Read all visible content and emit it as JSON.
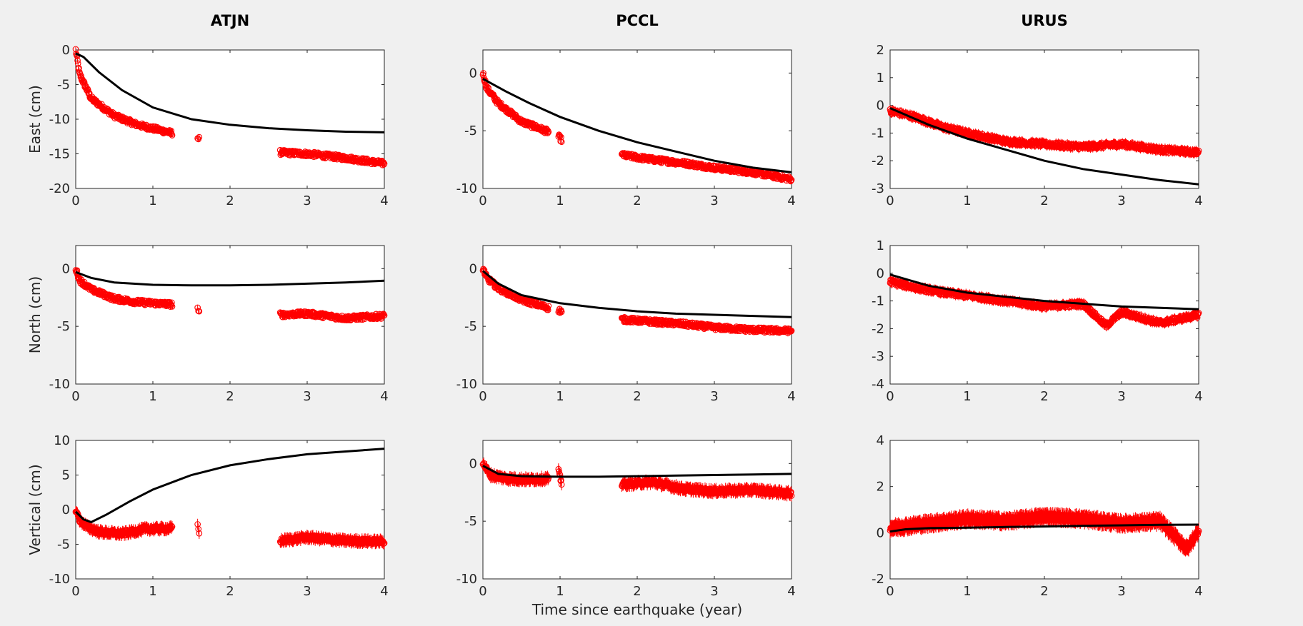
{
  "figure": {
    "colors": {
      "observed": "#ff0000",
      "model": "#000000",
      "background": "#f0f0f0"
    }
  },
  "chart_data": [
    {
      "type": "scatter",
      "station": "ATJN",
      "component": "East",
      "title": "ATJN",
      "xlabel": "",
      "ylabel": "East (cm)",
      "xlim": [
        0,
        4
      ],
      "ylim": [
        -20,
        0
      ],
      "xticks": [
        "0",
        "1",
        "2",
        "3",
        "4"
      ],
      "yticks": [
        "0",
        "-5",
        "-10",
        "-15",
        "-20"
      ],
      "observed_segments": [
        {
          "x": [
            0,
            0.05,
            0.2,
            0.5,
            0.8,
            1.25
          ],
          "y": [
            0,
            -3.5,
            -7,
            -9.5,
            -10.8,
            -12.0
          ]
        },
        {
          "x": [
            1.58,
            1.6
          ],
          "y": [
            -12.7,
            -12.9
          ]
        },
        {
          "x": [
            2.65,
            3.0,
            3.5,
            4.0
          ],
          "y": [
            -14.8,
            -15.0,
            -15.6,
            -16.4
          ]
        }
      ],
      "model": {
        "x": [
          0,
          0.1,
          0.3,
          0.6,
          1.0,
          1.5,
          2.0,
          2.5,
          3.0,
          3.5,
          4.0
        ],
        "y": [
          -0.5,
          -1.0,
          -3.2,
          -5.8,
          -8.3,
          -10.0,
          -10.8,
          -11.3,
          -11.6,
          -11.8,
          -11.9
        ]
      },
      "error_bar": 0.3
    },
    {
      "type": "scatter",
      "station": "PCCL",
      "component": "East",
      "title": "PCCL",
      "xlabel": "",
      "ylabel": "",
      "xlim": [
        0,
        4
      ],
      "ylim": [
        -10,
        2
      ],
      "xticks": [
        "0",
        "1",
        "2",
        "3",
        "4"
      ],
      "yticks": [
        "0",
        "-5",
        "-10"
      ],
      "observed_segments": [
        {
          "x": [
            0,
            0.05,
            0.2,
            0.5,
            0.85
          ],
          "y": [
            0,
            -1.3,
            -2.6,
            -4.2,
            -5.1
          ]
        },
        {
          "x": [
            0.98,
            1.02
          ],
          "y": [
            -5.5,
            -5.8
          ]
        },
        {
          "x": [
            1.8,
            2.2,
            2.6,
            3.0,
            3.5,
            4.0
          ],
          "y": [
            -7.1,
            -7.5,
            -7.8,
            -8.2,
            -8.6,
            -9.2
          ]
        }
      ],
      "model": {
        "x": [
          0,
          0.3,
          0.6,
          1.0,
          1.5,
          2.0,
          2.5,
          3.0,
          3.5,
          4.0
        ],
        "y": [
          -0.5,
          -1.6,
          -2.6,
          -3.8,
          -5.0,
          -6.0,
          -6.8,
          -7.6,
          -8.2,
          -8.6
        ]
      },
      "error_bar": 0.2
    },
    {
      "type": "scatter",
      "station": "URUS",
      "component": "East",
      "title": "URUS",
      "xlabel": "",
      "ylabel": "",
      "xlim": [
        0,
        4
      ],
      "ylim": [
        -3,
        2
      ],
      "xticks": [
        "0",
        "1",
        "2",
        "3",
        "4"
      ],
      "yticks": [
        "2",
        "1",
        "0",
        "-1",
        "-2",
        "-3"
      ],
      "observed_segments": [
        {
          "x": [
            0,
            0.3,
            0.7,
            1.0,
            1.5,
            2.0,
            2.5,
            3.0,
            3.5,
            4.0
          ],
          "y": [
            -0.2,
            -0.4,
            -0.8,
            -1.0,
            -1.3,
            -1.4,
            -1.5,
            -1.4,
            -1.6,
            -1.7
          ]
        }
      ],
      "model": {
        "x": [
          0,
          0.5,
          1.0,
          1.5,
          2.0,
          2.5,
          3.0,
          3.5,
          4.0
        ],
        "y": [
          -0.1,
          -0.7,
          -1.2,
          -1.6,
          -2.0,
          -2.3,
          -2.5,
          -2.7,
          -2.85
        ]
      },
      "error_bar": 0.15
    },
    {
      "type": "scatter",
      "station": "ATJN",
      "component": "North",
      "title": "",
      "xlabel": "",
      "ylabel": "North (cm)",
      "xlim": [
        0,
        4
      ],
      "ylim": [
        -10,
        2
      ],
      "xticks": [
        "0",
        "1",
        "2",
        "3",
        "4"
      ],
      "yticks": [
        "0",
        "-5",
        "-10"
      ],
      "observed_segments": [
        {
          "x": [
            0,
            0.05,
            0.2,
            0.5,
            0.8,
            1.25
          ],
          "y": [
            0,
            -1.0,
            -1.8,
            -2.6,
            -2.9,
            -3.1
          ]
        },
        {
          "x": [
            1.58,
            1.6
          ],
          "y": [
            -3.5,
            -3.7
          ]
        },
        {
          "x": [
            2.65,
            3.0,
            3.5,
            4.0
          ],
          "y": [
            -4.0,
            -3.9,
            -4.3,
            -4.1
          ]
        }
      ],
      "model": {
        "x": [
          0,
          0.2,
          0.5,
          1.0,
          1.5,
          2.0,
          2.5,
          3.0,
          3.5,
          4.0
        ],
        "y": [
          -0.3,
          -0.8,
          -1.2,
          -1.4,
          -1.45,
          -1.45,
          -1.4,
          -1.3,
          -1.2,
          -1.05
        ]
      },
      "error_bar": 0.2
    },
    {
      "type": "scatter",
      "station": "PCCL",
      "component": "North",
      "title": "",
      "xlabel": "",
      "ylabel": "",
      "xlim": [
        0,
        4
      ],
      "ylim": [
        -10,
        2
      ],
      "xticks": [
        "0",
        "1",
        "2",
        "3",
        "4"
      ],
      "yticks": [
        "0",
        "-5",
        "-10"
      ],
      "observed_segments": [
        {
          "x": [
            0,
            0.05,
            0.2,
            0.5,
            0.85
          ],
          "y": [
            0,
            -0.8,
            -1.7,
            -2.7,
            -3.4
          ]
        },
        {
          "x": [
            0.98,
            1.02
          ],
          "y": [
            -3.6,
            -3.7
          ]
        },
        {
          "x": [
            1.8,
            2.2,
            2.6,
            3.0,
            3.5,
            4.0
          ],
          "y": [
            -4.4,
            -4.6,
            -4.8,
            -5.1,
            -5.3,
            -5.4
          ]
        }
      ],
      "model": {
        "x": [
          0,
          0.2,
          0.5,
          1.0,
          1.5,
          2.0,
          2.5,
          3.0,
          3.5,
          4.0
        ],
        "y": [
          -0.2,
          -1.3,
          -2.3,
          -3.0,
          -3.4,
          -3.7,
          -3.9,
          -4.0,
          -4.1,
          -4.2
        ]
      },
      "error_bar": 0.2
    },
    {
      "type": "scatter",
      "station": "URUS",
      "component": "North",
      "title": "",
      "xlabel": "",
      "ylabel": "",
      "xlim": [
        0,
        4
      ],
      "ylim": [
        -4,
        1
      ],
      "xticks": [
        "0",
        "1",
        "2",
        "3",
        "4"
      ],
      "yticks": [
        "1",
        "0",
        "-1",
        "-2",
        "-3",
        "-4"
      ],
      "observed_segments": [
        {
          "x": [
            0,
            0.3,
            0.7,
            1.0,
            1.5,
            2.0,
            2.5,
            2.8,
            3.0,
            3.5,
            4.0
          ],
          "y": [
            -0.3,
            -0.5,
            -0.7,
            -0.8,
            -1.0,
            -1.2,
            -1.1,
            -1.9,
            -1.4,
            -1.8,
            -1.5
          ]
        }
      ],
      "model": {
        "x": [
          0,
          0.5,
          1.0,
          1.5,
          2.0,
          2.5,
          3.0,
          3.5,
          4.0
        ],
        "y": [
          -0.05,
          -0.45,
          -0.7,
          -0.85,
          -1.0,
          -1.1,
          -1.2,
          -1.25,
          -1.3
        ]
      },
      "error_bar": 0.15
    },
    {
      "type": "scatter",
      "station": "ATJN",
      "component": "Vertical",
      "title": "",
      "xlabel": "",
      "ylabel": "Vertical (cm)",
      "xlim": [
        0,
        4
      ],
      "ylim": [
        -10,
        10
      ],
      "xticks": [
        "0",
        "1",
        "2",
        "3",
        "4"
      ],
      "yticks": [
        "10",
        "5",
        "0",
        "-5",
        "-10"
      ],
      "observed_segments": [
        {
          "x": [
            0,
            0.05,
            0.15,
            0.3,
            0.6,
            0.9,
            1.25
          ],
          "y": [
            0,
            -1.5,
            -2.5,
            -3.2,
            -3.5,
            -2.8,
            -2.7
          ]
        },
        {
          "x": [
            1.58,
            1.6
          ],
          "y": [
            -2.0,
            -3.6
          ]
        },
        {
          "x": [
            2.65,
            3.0,
            3.5,
            4.0
          ],
          "y": [
            -4.5,
            -4.0,
            -4.5,
            -4.6
          ]
        }
      ],
      "model": {
        "x": [
          0,
          0.1,
          0.2,
          0.4,
          0.7,
          1.0,
          1.5,
          2.0,
          2.5,
          3.0,
          3.5,
          4.0
        ],
        "y": [
          -0.3,
          -1.4,
          -1.8,
          -0.7,
          1.2,
          2.9,
          5.0,
          6.4,
          7.3,
          8.0,
          8.4,
          8.8
        ]
      },
      "error_bar": 0.8
    },
    {
      "type": "scatter",
      "station": "PCCL",
      "component": "Vertical",
      "title": "",
      "xlabel": "Time since earthquake (year)",
      "ylabel": "",
      "xlim": [
        0,
        4
      ],
      "ylim": [
        -10,
        2
      ],
      "xticks": [
        "0",
        "1",
        "2",
        "3",
        "4"
      ],
      "yticks": [
        "0",
        "-5",
        "-10"
      ],
      "observed_segments": [
        {
          "x": [
            0,
            0.1,
            0.3,
            0.6,
            0.85
          ],
          "y": [
            0,
            -1.0,
            -1.3,
            -1.4,
            -1.3
          ]
        },
        {
          "x": [
            0.98,
            1.02
          ],
          "y": [
            -0.7,
            -1.7
          ]
        },
        {
          "x": [
            1.8,
            2.2,
            2.6,
            3.0,
            3.5,
            4.0
          ],
          "y": [
            -1.8,
            -1.6,
            -2.2,
            -2.4,
            -2.3,
            -2.6
          ]
        }
      ],
      "model": {
        "x": [
          0,
          0.2,
          0.5,
          1.0,
          1.5,
          2.0,
          2.5,
          3.0,
          3.5,
          4.0
        ],
        "y": [
          -0.2,
          -0.9,
          -1.1,
          -1.15,
          -1.15,
          -1.1,
          -1.05,
          -1.0,
          -0.95,
          -0.9
        ]
      },
      "error_bar": 0.5
    },
    {
      "type": "scatter",
      "station": "URUS",
      "component": "Vertical",
      "title": "",
      "xlabel": "",
      "ylabel": "",
      "xlim": [
        0,
        4
      ],
      "ylim": [
        -2,
        4
      ],
      "xticks": [
        "0",
        "1",
        "2",
        "3",
        "4"
      ],
      "yticks": [
        "4",
        "2",
        "0",
        "-2"
      ],
      "observed_segments": [
        {
          "x": [
            0,
            0.5,
            1.0,
            1.5,
            2.0,
            2.5,
            3.0,
            3.5,
            3.85,
            4.0
          ],
          "y": [
            0.2,
            0.4,
            0.6,
            0.5,
            0.7,
            0.6,
            0.4,
            0.5,
            -0.7,
            0.1
          ]
        }
      ],
      "model": {
        "x": [
          0,
          0.2,
          0.5,
          1.0,
          1.5,
          2.0,
          2.5,
          3.0,
          3.5,
          4.0
        ],
        "y": [
          0.05,
          0.15,
          0.2,
          0.22,
          0.25,
          0.27,
          0.3,
          0.32,
          0.34,
          0.35
        ]
      },
      "error_bar": 0.35
    }
  ]
}
